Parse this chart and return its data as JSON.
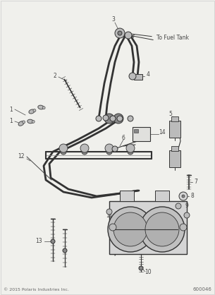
{
  "bg_color": "#f0f0ec",
  "copyright": "© 2015 Polaris Industries Inc.",
  "part_number": "600046",
  "line_color": "#333333",
  "light_gray": "#bbbbbb",
  "mid_gray": "#888888",
  "dark_gray": "#444444"
}
